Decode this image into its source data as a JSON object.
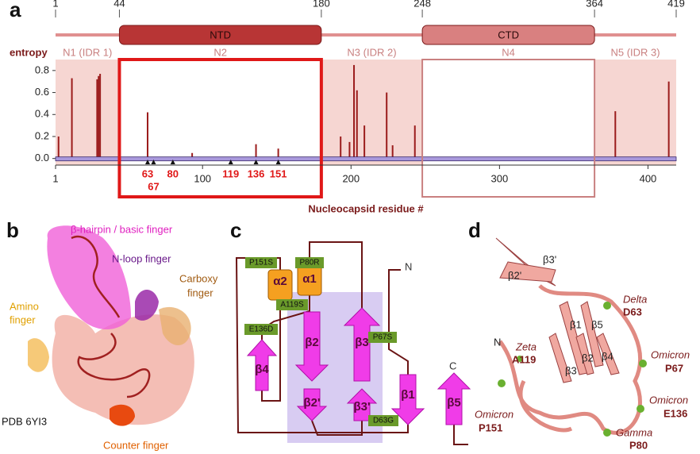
{
  "panel_labels": [
    "a",
    "b",
    "c",
    "d"
  ],
  "chart_data": {
    "type": "bar",
    "y_label": "entropy",
    "x_label": "Nucleocapsid residue #",
    "x": [
      3,
      12,
      29,
      30,
      31,
      63,
      93,
      136,
      151,
      193,
      199,
      202,
      204,
      209,
      224,
      228,
      243,
      378,
      414
    ],
    "values": [
      0.2,
      0.73,
      0.72,
      0.75,
      0.77,
      0.42,
      0.05,
      0.13,
      0.09,
      0.2,
      0.15,
      0.85,
      0.62,
      0.3,
      0.6,
      0.12,
      0.3,
      0.43,
      0.7
    ],
    "color": "#9b1c1c",
    "xlim": [
      1,
      419
    ],
    "xticks": [
      1,
      100,
      200,
      300,
      400
    ],
    "ylim": [
      -0.06,
      0.9
    ],
    "yticks": [
      {
        "value": 0,
        "label": "0.0"
      },
      0.2,
      0.4,
      0.6,
      0.8
    ],
    "top_ticks": [
      1,
      44,
      180,
      248,
      364,
      419
    ],
    "regions": [
      {
        "name": "N1 (IDR 1)",
        "start": 1,
        "end": 44,
        "shaded": true
      },
      {
        "name": "N2",
        "start": 44,
        "end": 180,
        "shaded": false
      },
      {
        "name": "N3 (IDR 2)",
        "start": 180,
        "end": 248,
        "shaded": true
      },
      {
        "name": "N4",
        "start": 248,
        "end": 364,
        "shaded": false
      },
      {
        "name": "N5 (IDR 3)",
        "start": 364,
        "end": 419,
        "shaded": true
      }
    ],
    "domains": [
      {
        "name": "NTD",
        "start": 44,
        "end": 180,
        "color": "#b83535"
      },
      {
        "name": "CTD",
        "start": 248,
        "end": 364,
        "color": "#d98080"
      }
    ],
    "markers": [
      63,
      67,
      80,
      119,
      136,
      151
    ]
  },
  "structure_b": {
    "labels": [
      "β-hairpin / basic finger",
      "N-loop finger",
      "Carboxy",
      "finger",
      "Amino",
      "finger",
      "PDB 6YI3",
      "Counter finger"
    ]
  },
  "topology_c": {
    "helices": [
      "α2",
      "α1"
    ],
    "strands": [
      "β4",
      "β2",
      "β3",
      "β2'",
      "β3'",
      "β1",
      "β5"
    ],
    "mutations": [
      "P151S",
      "P80R",
      "A119S",
      "E136D",
      "P67S",
      "D63G"
    ],
    "termini": [
      "N",
      "C"
    ]
  },
  "structure_d": {
    "strands": [
      "β3'",
      "β2'",
      "β1",
      "β5",
      "β3",
      "β2",
      "β4"
    ],
    "terminus": "N",
    "variants": [
      {
        "name": "Delta",
        "mutation": "D63"
      },
      {
        "name": "Zeta",
        "mutation": "A119"
      },
      {
        "name": "Omicron",
        "mutation": "P67"
      },
      {
        "name": "Omicron",
        "mutation": "E136"
      },
      {
        "name": "Omicron",
        "mutation": "P151"
      },
      {
        "name": "Gamma",
        "mutation": "P80"
      }
    ]
  }
}
